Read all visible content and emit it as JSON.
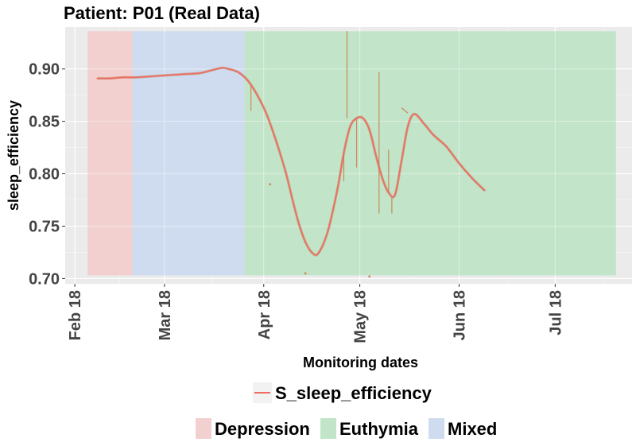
{
  "chart_data": {
    "type": "line",
    "title": "Patient: P01 (Real Data)",
    "xlabel": "Monitoring dates",
    "ylabel": "sleep_efficiency",
    "x_ticks": [
      "Feb 18",
      "Mar 18",
      "Apr 18",
      "May 18",
      "Jun 18",
      "Jul 18"
    ],
    "y_ticks": [
      "0.70",
      "0.75",
      "0.80",
      "0.85",
      "0.90"
    ],
    "xlim": [
      "2018-01-29",
      "2018-07-25"
    ],
    "ylim": [
      0.695,
      0.94
    ],
    "grid": true,
    "background": "#ebebeb",
    "states": [
      {
        "name": "Depression",
        "start": "2018-02-05",
        "end": "2018-02-19",
        "color": "#f2d0d0"
      },
      {
        "name": "Mixed",
        "start": "2018-02-19",
        "end": "2018-03-26",
        "color": "#cfdcf0"
      },
      {
        "name": "Euthymia",
        "start": "2018-03-26",
        "end": "2018-07-20",
        "color": "#c2e4c8"
      }
    ],
    "state_band_ylim": [
      0.703,
      0.936
    ],
    "series": [
      {
        "name": "S_sleep_efficiency",
        "color": "#ee6d62",
        "dates": [
          "2018-02-08",
          "2018-02-12",
          "2018-02-16",
          "2018-02-20",
          "2018-02-25",
          "2018-03-02",
          "2018-03-07",
          "2018-03-12",
          "2018-03-16",
          "2018-03-19",
          "2018-03-21",
          "2018-03-24",
          "2018-03-27",
          "2018-03-30",
          "2018-04-02",
          "2018-04-05",
          "2018-04-08",
          "2018-04-10",
          "2018-04-12",
          "2018-04-14",
          "2018-04-16",
          "2018-04-18",
          "2018-04-21",
          "2018-04-24",
          "2018-04-26",
          "2018-04-28",
          "2018-04-30",
          "2018-05-02",
          "2018-05-04",
          "2018-05-06",
          "2018-05-08",
          "2018-05-10",
          "2018-05-12",
          "2018-05-14",
          "2018-05-16",
          "2018-05-18",
          "2018-05-21",
          "2018-05-24",
          "2018-05-28",
          "2018-06-01",
          "2018-06-05",
          "2018-06-09"
        ],
        "values": [
          0.891,
          0.891,
          0.892,
          0.892,
          0.893,
          0.894,
          0.895,
          0.896,
          0.899,
          0.901,
          0.9,
          0.897,
          0.889,
          0.875,
          0.856,
          0.83,
          0.8,
          0.775,
          0.752,
          0.735,
          0.725,
          0.724,
          0.745,
          0.785,
          0.82,
          0.845,
          0.853,
          0.853,
          0.842,
          0.818,
          0.796,
          0.782,
          0.78,
          0.812,
          0.845,
          0.857,
          0.848,
          0.837,
          0.826,
          0.81,
          0.796,
          0.784
        ]
      }
    ],
    "raw_segments": [
      {
        "dates": [
          "2018-03-28",
          "2018-03-28"
        ],
        "values": [
          0.885,
          0.86
        ]
      },
      {
        "dates": [
          "2018-04-27",
          "2018-04-27"
        ],
        "values": [
          0.936,
          0.853
        ]
      },
      {
        "dates": [
          "2018-04-26",
          "2018-04-26"
        ],
        "values": [
          0.82,
          0.793
        ]
      },
      {
        "dates": [
          "2018-04-30",
          "2018-04-30"
        ],
        "values": [
          0.853,
          0.806
        ]
      },
      {
        "dates": [
          "2018-05-07",
          "2018-05-07"
        ],
        "values": [
          0.897,
          0.762
        ]
      },
      {
        "dates": [
          "2018-05-10",
          "2018-05-10"
        ],
        "values": [
          0.823,
          0.783
        ]
      },
      {
        "dates": [
          "2018-05-11",
          "2018-05-11"
        ],
        "values": [
          0.777,
          0.762
        ]
      },
      {
        "dates": [
          "2018-05-14",
          "2018-05-16"
        ],
        "values": [
          0.863,
          0.858
        ]
      }
    ],
    "raw_points": [
      {
        "date": "2018-04-03",
        "value": 0.79
      },
      {
        "date": "2018-04-14",
        "value": 0.705
      },
      {
        "date": "2018-05-04",
        "value": 0.702
      }
    ],
    "legends": {
      "series": {
        "label": "S_sleep_efficiency",
        "color": "#ee6d62"
      },
      "states": [
        {
          "label": "Depression",
          "color": "#f2d0d0"
        },
        {
          "label": "Euthymia",
          "color": "#c2e4c8"
        },
        {
          "label": "Mixed",
          "color": "#cfdcf0"
        }
      ],
      "placement": "bottom"
    }
  }
}
